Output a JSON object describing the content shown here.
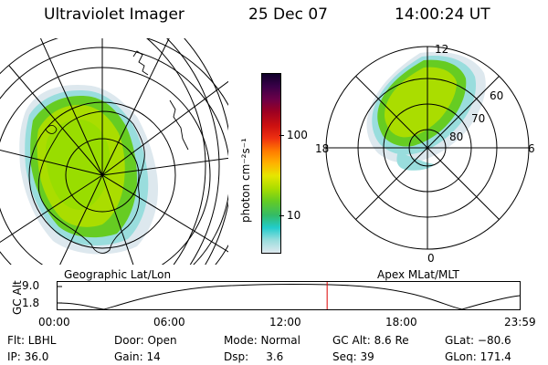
{
  "header": {
    "instrument": "Ultraviolet Imager",
    "date": "25 Dec 07",
    "time": "14:00:24 UT"
  },
  "geo_map": {
    "label": "Geographic Lat/Lon"
  },
  "apex_map": {
    "label": "Apex MLat/MLT",
    "mlt_labels": {
      "top": "12",
      "bottom": "0",
      "left": "18",
      "right": "6"
    },
    "mlat_labels": [
      "60",
      "70",
      "80"
    ]
  },
  "colorbar": {
    "unit_label": "photon cm⁻²s⁻¹",
    "ticks": [
      "100",
      "10"
    ],
    "colors": [
      "#10002a",
      "#3a0048",
      "#6a0048",
      "#9c0022",
      "#cc1010",
      "#ee3010",
      "#ff7a00",
      "#ffb200",
      "#e6e600",
      "#aadd00",
      "#66cc22",
      "#33bb66",
      "#22cccc",
      "#99dddd",
      "#dde8ee"
    ]
  },
  "altitude_panel": {
    "ylabel": "GC Alt",
    "yticks": [
      "9.0",
      "1.8"
    ],
    "xticks": [
      "00:00",
      "06:00",
      "12:00",
      "18:00",
      "23:59"
    ],
    "marker_time_h": 14.0
  },
  "footer": {
    "row1": [
      "Flt: LBHL",
      "Door: Open",
      "Mode: Normal",
      "GC Alt: 8.6 Re",
      "GLat: −80.6"
    ],
    "row2": [
      "IP: 36.0",
      "Gain: 14",
      "Dsp:     3.6",
      "Seq: 39",
      "GLon: 171.4"
    ]
  }
}
